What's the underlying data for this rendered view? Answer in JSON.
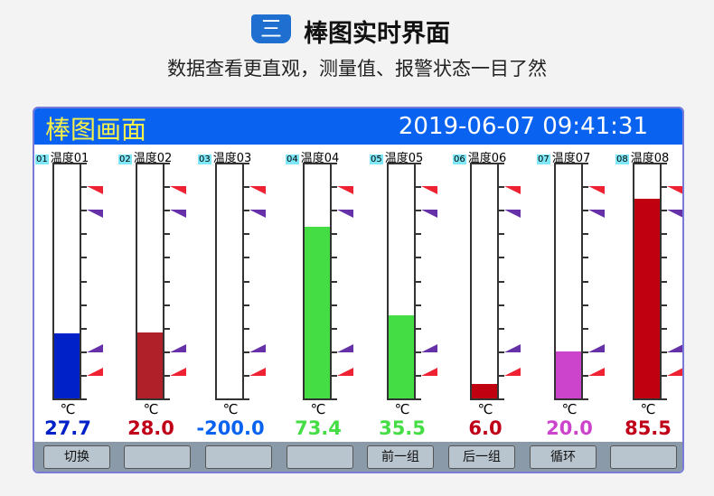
{
  "header": {
    "badge": "三",
    "title": "棒图实时界面",
    "subtitle": "数据查看更直观，测量值、报警状态一目了然"
  },
  "panel": {
    "title": "棒图画面",
    "datetime": "2019-06-07  09:41:31"
  },
  "scale": {
    "min": 0,
    "max": 100
  },
  "alarm_colors": {
    "high": "#ee2233",
    "low": "#6630a8"
  },
  "channels": [
    {
      "num": "01",
      "name": "温度01",
      "unit": "℃",
      "value": "27.7",
      "level": 27.7,
      "fill": "#0020c8",
      "text_color": "#0020c8"
    },
    {
      "num": "02",
      "name": "温度02",
      "unit": "℃",
      "value": "28.0",
      "level": 28.0,
      "fill": "#b02028",
      "text_color": "#c00018"
    },
    {
      "num": "03",
      "name": "温度03",
      "unit": "℃",
      "value": "-200.0",
      "level": -200,
      "fill": "#0a63f0",
      "text_color": "#0a63f0"
    },
    {
      "num": "04",
      "name": "温度04",
      "unit": "℃",
      "value": "73.4",
      "level": 73.4,
      "fill": "#44dd44",
      "text_color": "#44dd44"
    },
    {
      "num": "05",
      "name": "温度05",
      "unit": "℃",
      "value": "35.5",
      "level": 35.5,
      "fill": "#44dd44",
      "text_color": "#44dd44"
    },
    {
      "num": "06",
      "name": "温度06",
      "unit": "℃",
      "value": "6.0",
      "level": 6.0,
      "fill": "#c00010",
      "text_color": "#c00018"
    },
    {
      "num": "07",
      "name": "温度07",
      "unit": "℃",
      "value": "20.0",
      "level": 20.0,
      "fill": "#cc44cc",
      "text_color": "#cc44cc"
    },
    {
      "num": "08",
      "name": "温度08",
      "unit": "℃",
      "value": "85.5",
      "level": 85.5,
      "fill": "#c00010",
      "text_color": "#c00018"
    }
  ],
  "buttons": [
    "切换",
    "",
    "",
    "",
    "前一组",
    "后一组",
    "循环",
    ""
  ]
}
